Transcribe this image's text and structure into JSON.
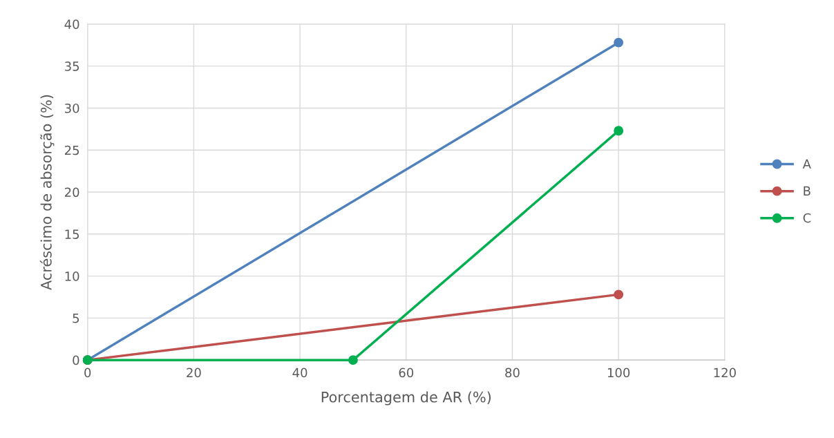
{
  "chart_data": {
    "type": "line",
    "xlabel": "Porcentagem de AR (%)",
    "ylabel": "Acréscimo de absorção (%)",
    "series": [
      {
        "name": "A",
        "color": "#4f81bd",
        "x": [
          0,
          100
        ],
        "values": [
          0,
          37.8
        ]
      },
      {
        "name": "B",
        "color": "#c0504d",
        "x": [
          0,
          100
        ],
        "values": [
          0,
          7.8
        ]
      },
      {
        "name": "C",
        "color": "#00b050",
        "x": [
          0,
          50,
          100
        ],
        "values": [
          0,
          0,
          27.3
        ]
      }
    ],
    "xlim": [
      0,
      120
    ],
    "xticks": [
      0,
      20,
      40,
      60,
      80,
      100,
      120
    ],
    "ylim": [
      0,
      40
    ],
    "yticks": [
      0,
      5,
      10,
      15,
      20,
      25,
      30,
      35,
      40
    ],
    "grid": true,
    "legend": "right",
    "marker": "circle",
    "line_style": "solid"
  }
}
